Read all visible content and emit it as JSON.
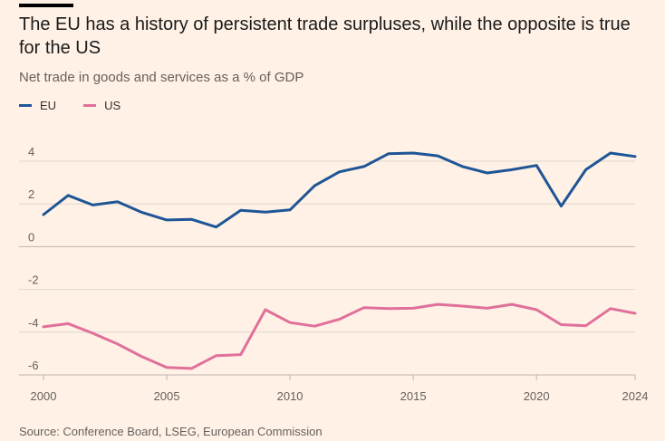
{
  "title": "The EU has a history of persistent trade surpluses, while the opposite is true for the US",
  "subtitle": "Net trade in goods and services as a % of GDP",
  "source": "Source: Conference Board, LSEG, European Commission",
  "colors": {
    "background": "#FFF1E5",
    "eu": "#1F5596",
    "us": "#E0709A",
    "gridline": "#e0d7ce",
    "zeroline": "#bdb5ad"
  },
  "chart_data": {
    "type": "line",
    "x": [
      2000,
      2001,
      2002,
      2003,
      2004,
      2005,
      2006,
      2007,
      2008,
      2009,
      2010,
      2011,
      2012,
      2013,
      2014,
      2015,
      2016,
      2017,
      2018,
      2019,
      2020,
      2021,
      2022,
      2023,
      2024
    ],
    "series": [
      {
        "name": "EU",
        "color": "#1F5596",
        "values": [
          1.5,
          2.4,
          1.95,
          2.1,
          1.6,
          1.25,
          1.28,
          0.92,
          1.7,
          1.62,
          1.72,
          2.85,
          3.5,
          3.75,
          4.35,
          4.38,
          4.25,
          3.75,
          3.45,
          3.6,
          3.8,
          1.9,
          3.6,
          4.38,
          4.22
        ]
      },
      {
        "name": "US",
        "color": "#E0709A",
        "values": [
          -3.75,
          -3.6,
          -4.05,
          -4.55,
          -5.15,
          -5.65,
          -5.7,
          -5.1,
          -5.05,
          -2.95,
          -3.55,
          -3.72,
          -3.4,
          -2.85,
          -2.9,
          -2.88,
          -2.7,
          -2.78,
          -2.88,
          -2.7,
          -2.95,
          -3.65,
          -3.7,
          -2.9,
          -3.12
        ]
      }
    ],
    "xticks": [
      2000,
      2005,
      2010,
      2015,
      2020,
      2024
    ],
    "yticks": [
      4,
      2,
      0,
      -2,
      -4,
      -6
    ],
    "ytick_labels": [
      "4",
      "2",
      "0",
      "-2",
      "-4",
      "-6"
    ],
    "xlim": [
      2000,
      2024
    ],
    "ylim": [
      -6.2,
      5.2
    ],
    "grid": true,
    "legend_position": "top-left"
  }
}
